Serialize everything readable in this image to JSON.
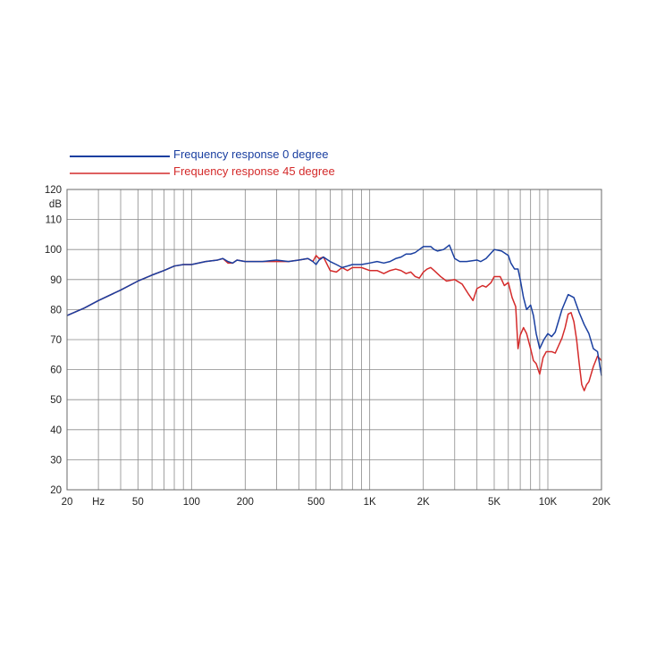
{
  "chart_data": {
    "type": "line",
    "title": "",
    "xlabel": "",
    "ylabel": "",
    "y_unit_label": "dB",
    "x_scale": "log",
    "xlim": [
      20,
      20000
    ],
    "ylim": [
      20,
      120
    ],
    "grid": true,
    "legend_position": "top-left",
    "x_tick_labels": [
      {
        "value": 20,
        "label": "20"
      },
      {
        "value": 30,
        "label": "Hz"
      },
      {
        "value": 50,
        "label": "50"
      },
      {
        "value": 100,
        "label": "100"
      },
      {
        "value": 200,
        "label": "200"
      },
      {
        "value": 500,
        "label": "500"
      },
      {
        "value": 1000,
        "label": "1K"
      },
      {
        "value": 2000,
        "label": "2K"
      },
      {
        "value": 5000,
        "label": "5K"
      },
      {
        "value": 10000,
        "label": "10K"
      },
      {
        "value": 20000,
        "label": "20K"
      }
    ],
    "y_ticks": [
      20,
      30,
      40,
      50,
      60,
      70,
      80,
      90,
      100,
      110,
      120
    ],
    "series": [
      {
        "name": "Frequency response 0 degree",
        "color": "#1a3fa0",
        "points": [
          [
            20,
            78
          ],
          [
            25,
            80.5
          ],
          [
            30,
            83
          ],
          [
            40,
            86.5
          ],
          [
            50,
            89.5
          ],
          [
            60,
            91.5
          ],
          [
            70,
            93
          ],
          [
            80,
            94.5
          ],
          [
            90,
            95
          ],
          [
            100,
            95
          ],
          [
            120,
            96
          ],
          [
            140,
            96.5
          ],
          [
            150,
            97
          ],
          [
            160,
            96
          ],
          [
            170,
            95.5
          ],
          [
            180,
            96.5
          ],
          [
            200,
            96
          ],
          [
            250,
            96
          ],
          [
            300,
            96.5
          ],
          [
            350,
            96
          ],
          [
            400,
            96.5
          ],
          [
            450,
            97
          ],
          [
            480,
            96
          ],
          [
            500,
            95
          ],
          [
            520,
            96.5
          ],
          [
            550,
            97.5
          ],
          [
            600,
            96
          ],
          [
            650,
            95
          ],
          [
            700,
            94
          ],
          [
            750,
            94.5
          ],
          [
            800,
            95
          ],
          [
            900,
            95
          ],
          [
            1000,
            95.5
          ],
          [
            1100,
            96
          ],
          [
            1200,
            95.5
          ],
          [
            1300,
            96
          ],
          [
            1400,
            97
          ],
          [
            1500,
            97.5
          ],
          [
            1600,
            98.5
          ],
          [
            1700,
            98.5
          ],
          [
            1800,
            99
          ],
          [
            1900,
            100
          ],
          [
            2000,
            101
          ],
          [
            2200,
            101
          ],
          [
            2300,
            100
          ],
          [
            2400,
            99.5
          ],
          [
            2600,
            100
          ],
          [
            2800,
            101.5
          ],
          [
            3000,
            97
          ],
          [
            3200,
            96
          ],
          [
            3500,
            96
          ],
          [
            4000,
            96.5
          ],
          [
            4200,
            96
          ],
          [
            4500,
            97
          ],
          [
            5000,
            100
          ],
          [
            5500,
            99.5
          ],
          [
            6000,
            98
          ],
          [
            6200,
            95.5
          ],
          [
            6500,
            93.5
          ],
          [
            6800,
            93.5
          ],
          [
            7000,
            90
          ],
          [
            7300,
            84
          ],
          [
            7600,
            80
          ],
          [
            8000,
            81.5
          ],
          [
            8300,
            78
          ],
          [
            8600,
            72
          ],
          [
            9000,
            67
          ],
          [
            9500,
            70
          ],
          [
            10000,
            72
          ],
          [
            10500,
            71
          ],
          [
            11000,
            72.5
          ],
          [
            12000,
            80
          ],
          [
            13000,
            85
          ],
          [
            14000,
            84
          ],
          [
            15000,
            79
          ],
          [
            16000,
            75
          ],
          [
            17000,
            72
          ],
          [
            18000,
            67
          ],
          [
            19000,
            66
          ],
          [
            20000,
            58
          ]
        ]
      },
      {
        "name": "Frequency response 45 degree",
        "color": "#d42b2b",
        "points": [
          [
            20,
            78
          ],
          [
            25,
            80.5
          ],
          [
            30,
            83
          ],
          [
            40,
            86.5
          ],
          [
            50,
            89.5
          ],
          [
            60,
            91.5
          ],
          [
            70,
            93
          ],
          [
            80,
            94.5
          ],
          [
            90,
            95
          ],
          [
            100,
            95
          ],
          [
            120,
            96
          ],
          [
            140,
            96.5
          ],
          [
            150,
            97
          ],
          [
            160,
            95.5
          ],
          [
            170,
            95.5
          ],
          [
            180,
            96.5
          ],
          [
            200,
            96
          ],
          [
            250,
            96
          ],
          [
            300,
            96
          ],
          [
            350,
            96
          ],
          [
            400,
            96.5
          ],
          [
            450,
            97
          ],
          [
            480,
            96
          ],
          [
            500,
            98
          ],
          [
            520,
            97
          ],
          [
            550,
            97.5
          ],
          [
            600,
            93
          ],
          [
            650,
            92.5
          ],
          [
            700,
            94
          ],
          [
            750,
            93
          ],
          [
            800,
            94
          ],
          [
            900,
            94
          ],
          [
            1000,
            93
          ],
          [
            1100,
            93
          ],
          [
            1200,
            92
          ],
          [
            1300,
            93
          ],
          [
            1400,
            93.5
          ],
          [
            1500,
            93
          ],
          [
            1600,
            92
          ],
          [
            1700,
            92.5
          ],
          [
            1800,
            91
          ],
          [
            1900,
            90.5
          ],
          [
            2000,
            92.5
          ],
          [
            2100,
            93.5
          ],
          [
            2200,
            94
          ],
          [
            2300,
            93
          ],
          [
            2500,
            91
          ],
          [
            2700,
            89.5
          ],
          [
            3000,
            90
          ],
          [
            3300,
            88.5
          ],
          [
            3600,
            85
          ],
          [
            3800,
            83
          ],
          [
            4000,
            87
          ],
          [
            4300,
            88
          ],
          [
            4500,
            87.5
          ],
          [
            4800,
            89
          ],
          [
            5000,
            91
          ],
          [
            5400,
            91
          ],
          [
            5700,
            88
          ],
          [
            6000,
            89
          ],
          [
            6300,
            84
          ],
          [
            6600,
            81
          ],
          [
            6800,
            67
          ],
          [
            7000,
            71.5
          ],
          [
            7300,
            74
          ],
          [
            7600,
            72
          ],
          [
            8000,
            67
          ],
          [
            8300,
            63
          ],
          [
            8600,
            62
          ],
          [
            9000,
            58.5
          ],
          [
            9400,
            64
          ],
          [
            9800,
            66
          ],
          [
            10500,
            66
          ],
          [
            11000,
            65.5
          ],
          [
            12000,
            70.5
          ],
          [
            12500,
            74
          ],
          [
            13000,
            78.5
          ],
          [
            13500,
            79
          ],
          [
            14000,
            76
          ],
          [
            14500,
            70
          ],
          [
            15000,
            62
          ],
          [
            15500,
            55
          ],
          [
            16000,
            53
          ],
          [
            16500,
            55
          ],
          [
            17000,
            56
          ],
          [
            18000,
            61
          ],
          [
            19000,
            64.5
          ],
          [
            20000,
            63
          ]
        ]
      }
    ]
  }
}
